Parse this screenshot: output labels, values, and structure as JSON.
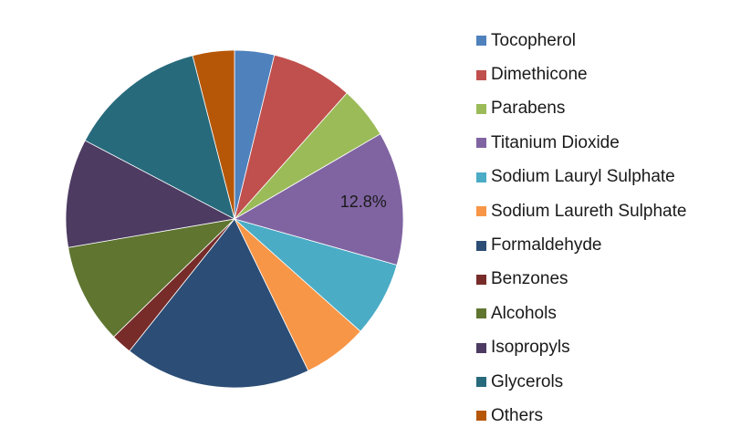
{
  "chart_data": {
    "type": "pie",
    "title": "",
    "legend_position": "right",
    "categories": [
      "Tocopherol",
      "Dimethicone",
      "Parabens",
      "Titanium Dioxide",
      "Sodium Lauryl Sulphate",
      "Sodium Laureth Sulphate",
      "Formaldehyde",
      "Benzones",
      "Alcohols",
      "Isopropyls",
      "Glycerols",
      "Others"
    ],
    "values": [
      3.8,
      7.8,
      5.0,
      12.8,
      7.2,
      6.2,
      17.9,
      2.0,
      9.6,
      10.4,
      13.3,
      4.0
    ],
    "colors": [
      "#4F81BD",
      "#C0504D",
      "#9BBB59",
      "#8064A2",
      "#4BACC6",
      "#F79646",
      "#2C4D75",
      "#772C2A",
      "#5F7530",
      "#4D3B62",
      "#276A7C",
      "#B65708"
    ],
    "data_labels": [
      {
        "category": "Titanium Dioxide",
        "text": "12.8%"
      }
    ]
  }
}
